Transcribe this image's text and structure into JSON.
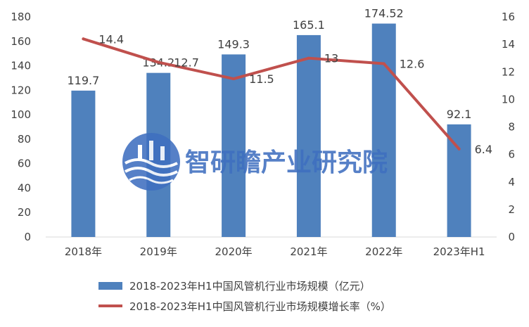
{
  "chart_data": {
    "type": "bar",
    "categories": [
      "2018年",
      "2019年",
      "2020年",
      "2021年",
      "2022年",
      "2023年H1"
    ],
    "series": [
      {
        "name": "2018-2023年H1中国风管机行业市场规模（亿元）",
        "type": "bar",
        "axis": "left",
        "values": [
          119.7,
          134.2,
          149.3,
          165.1,
          174.52,
          92.1
        ],
        "labels": [
          "119.7",
          "134.2",
          "149.3",
          "165.1",
          "174.52",
          "92.1"
        ],
        "color": "#4f81bd"
      },
      {
        "name": "2018-2023年H1中国风管机行业市场规模增长率（%）",
        "type": "line",
        "axis": "right",
        "values": [
          14.4,
          12.7,
          11.5,
          13,
          12.6,
          6.4
        ],
        "labels": [
          "14.4",
          "12.7",
          "11.5",
          "13",
          "12.6",
          "6.4"
        ],
        "color": "#c0504d"
      }
    ],
    "y_left": {
      "min": 0,
      "max": 180,
      "ticks": [
        "0",
        "20",
        "40",
        "60",
        "80",
        "100",
        "120",
        "140",
        "160",
        "180"
      ]
    },
    "y_right": {
      "min": 0,
      "max": 16,
      "ticks": [
        "0",
        "2",
        "4",
        "6",
        "8",
        "10",
        "12",
        "14",
        "16"
      ]
    },
    "grid": false,
    "legend_position": "bottom"
  },
  "watermark": {
    "text": "智研瞻产业研究院",
    "icon": "globe-wave-logo"
  }
}
